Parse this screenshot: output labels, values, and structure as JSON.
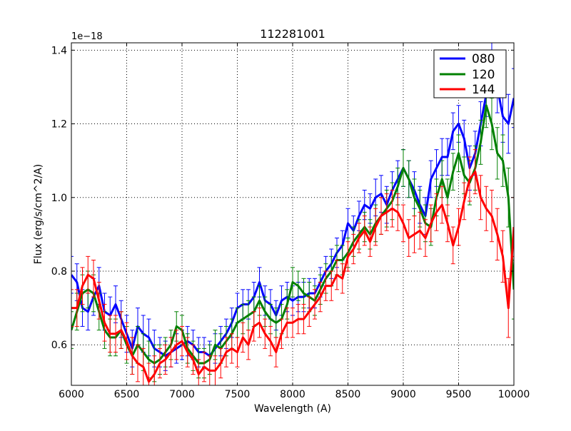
{
  "chart_data": {
    "type": "line",
    "title": "112281001",
    "xlabel": "Wavelength (A)",
    "ylabel": "Flux (erg/s/cm^2/A)",
    "offset_text": "1e−18",
    "xlim": [
      6000,
      10000
    ],
    "ylim": [
      0.49,
      1.42
    ],
    "x_ticks": [
      6000,
      6500,
      7000,
      7500,
      8000,
      8500,
      9000,
      9500,
      10000
    ],
    "x_tick_labels": [
      "6000",
      "6500",
      "7000",
      "7500",
      "8000",
      "8500",
      "9000",
      "9500",
      "10000"
    ],
    "y_ticks": [
      0.6,
      0.8,
      1.0,
      1.2,
      1.4
    ],
    "y_tick_labels": [
      "0.6",
      "0.8",
      "1.0",
      "1.2",
      "1.4"
    ],
    "grid": true,
    "grid_style": "dotted",
    "legend_position": "top-right",
    "error_bars": true,
    "series": [
      {
        "name": "080",
        "color": "#0000ff",
        "x": [
          6000,
          6050,
          6100,
          6150,
          6200,
          6250,
          6300,
          6350,
          6400,
          6450,
          6500,
          6550,
          6600,
          6650,
          6700,
          6750,
          6800,
          6850,
          6900,
          6950,
          7000,
          7050,
          7100,
          7150,
          7200,
          7250,
          7300,
          7350,
          7400,
          7450,
          7500,
          7550,
          7600,
          7650,
          7700,
          7750,
          7800,
          7850,
          7900,
          7950,
          8000,
          8050,
          8100,
          8150,
          8200,
          8250,
          8300,
          8350,
          8400,
          8450,
          8500,
          8550,
          8600,
          8650,
          8700,
          8750,
          8800,
          8850,
          8900,
          8950,
          9000,
          9050,
          9100,
          9150,
          9200,
          9250,
          9300,
          9350,
          9400,
          9450,
          9500,
          9550,
          9600,
          9650,
          9700,
          9750,
          9800,
          9850,
          9900,
          9950,
          10000
        ],
        "y": [
          0.79,
          0.77,
          0.7,
          0.69,
          0.73,
          0.76,
          0.69,
          0.68,
          0.71,
          0.67,
          0.63,
          0.59,
          0.65,
          0.63,
          0.62,
          0.59,
          0.58,
          0.57,
          0.58,
          0.59,
          0.6,
          0.61,
          0.6,
          0.58,
          0.58,
          0.57,
          0.59,
          0.61,
          0.63,
          0.66,
          0.7,
          0.71,
          0.71,
          0.73,
          0.77,
          0.72,
          0.71,
          0.68,
          0.72,
          0.73,
          0.72,
          0.73,
          0.73,
          0.74,
          0.74,
          0.77,
          0.8,
          0.82,
          0.85,
          0.87,
          0.93,
          0.91,
          0.95,
          0.98,
          0.97,
          1.0,
          1.01,
          0.98,
          1.02,
          1.05,
          1.08,
          1.05,
          1.02,
          0.98,
          0.95,
          1.05,
          1.08,
          1.11,
          1.11,
          1.18,
          1.2,
          1.16,
          1.08,
          1.12,
          1.2,
          1.28,
          1.38,
          1.3,
          1.22,
          1.2,
          1.27
        ],
        "err": [
          0.05,
          0.05,
          0.05,
          0.05,
          0.05,
          0.05,
          0.05,
          0.05,
          0.05,
          0.05,
          0.05,
          0.05,
          0.05,
          0.05,
          0.05,
          0.05,
          0.04,
          0.04,
          0.04,
          0.04,
          0.04,
          0.04,
          0.04,
          0.04,
          0.04,
          0.04,
          0.04,
          0.04,
          0.04,
          0.04,
          0.04,
          0.04,
          0.04,
          0.04,
          0.04,
          0.04,
          0.04,
          0.04,
          0.04,
          0.04,
          0.04,
          0.04,
          0.04,
          0.04,
          0.04,
          0.04,
          0.04,
          0.04,
          0.04,
          0.04,
          0.04,
          0.04,
          0.04,
          0.04,
          0.04,
          0.05,
          0.05,
          0.05,
          0.05,
          0.05,
          0.05,
          0.05,
          0.05,
          0.05,
          0.05,
          0.05,
          0.05,
          0.05,
          0.05,
          0.05,
          0.05,
          0.05,
          0.06,
          0.06,
          0.06,
          0.06,
          0.07,
          0.07,
          0.07,
          0.08,
          0.08
        ]
      },
      {
        "name": "120",
        "color": "#008000",
        "x": [
          6000,
          6050,
          6100,
          6150,
          6200,
          6250,
          6300,
          6350,
          6400,
          6450,
          6500,
          6550,
          6600,
          6650,
          6700,
          6750,
          6800,
          6850,
          6900,
          6950,
          7000,
          7050,
          7100,
          7150,
          7200,
          7250,
          7300,
          7350,
          7400,
          7450,
          7500,
          7550,
          7600,
          7650,
          7700,
          7750,
          7800,
          7850,
          7900,
          7950,
          8000,
          8050,
          8100,
          8150,
          8200,
          8250,
          8300,
          8350,
          8400,
          8450,
          8500,
          8550,
          8600,
          8650,
          8700,
          8750,
          8800,
          8850,
          8900,
          8950,
          9000,
          9050,
          9100,
          9150,
          9200,
          9250,
          9300,
          9350,
          9400,
          9450,
          9500,
          9550,
          9600,
          9650,
          9700,
          9750,
          9800,
          9850,
          9900,
          9950,
          10000
        ],
        "y": [
          0.64,
          0.69,
          0.74,
          0.75,
          0.74,
          0.69,
          0.64,
          0.62,
          0.62,
          0.64,
          0.6,
          0.57,
          0.6,
          0.58,
          0.56,
          0.55,
          0.56,
          0.58,
          0.6,
          0.65,
          0.64,
          0.59,
          0.57,
          0.55,
          0.55,
          0.56,
          0.6,
          0.59,
          0.61,
          0.63,
          0.66,
          0.67,
          0.68,
          0.69,
          0.72,
          0.69,
          0.67,
          0.66,
          0.67,
          0.71,
          0.77,
          0.76,
          0.74,
          0.73,
          0.72,
          0.75,
          0.78,
          0.8,
          0.83,
          0.83,
          0.85,
          0.88,
          0.9,
          0.92,
          0.9,
          0.93,
          0.95,
          0.97,
          0.99,
          1.03,
          1.08,
          1.05,
          1.0,
          0.97,
          0.93,
          0.92,
          1.0,
          1.05,
          1.0,
          1.07,
          1.12,
          1.06,
          1.04,
          1.08,
          1.15,
          1.25,
          1.2,
          1.12,
          1.1,
          1.0,
          0.75
        ],
        "err": [
          0.05,
          0.05,
          0.05,
          0.05,
          0.05,
          0.05,
          0.05,
          0.05,
          0.05,
          0.05,
          0.05,
          0.05,
          0.05,
          0.05,
          0.05,
          0.05,
          0.04,
          0.04,
          0.04,
          0.04,
          0.04,
          0.04,
          0.04,
          0.04,
          0.04,
          0.04,
          0.04,
          0.04,
          0.04,
          0.04,
          0.04,
          0.04,
          0.04,
          0.04,
          0.04,
          0.04,
          0.04,
          0.04,
          0.04,
          0.04,
          0.04,
          0.04,
          0.04,
          0.04,
          0.04,
          0.04,
          0.04,
          0.04,
          0.04,
          0.04,
          0.04,
          0.04,
          0.04,
          0.04,
          0.04,
          0.05,
          0.05,
          0.05,
          0.05,
          0.05,
          0.05,
          0.05,
          0.05,
          0.05,
          0.05,
          0.05,
          0.05,
          0.05,
          0.05,
          0.05,
          0.05,
          0.05,
          0.06,
          0.06,
          0.06,
          0.06,
          0.07,
          0.07,
          0.07,
          0.08,
          0.08
        ]
      },
      {
        "name": "144",
        "color": "#ff0000",
        "x": [
          6000,
          6050,
          6100,
          6150,
          6200,
          6250,
          6300,
          6350,
          6400,
          6450,
          6500,
          6550,
          6600,
          6650,
          6700,
          6750,
          6800,
          6850,
          6900,
          6950,
          7000,
          7050,
          7100,
          7150,
          7200,
          7250,
          7300,
          7350,
          7400,
          7450,
          7500,
          7550,
          7600,
          7650,
          7700,
          7750,
          7800,
          7850,
          7900,
          7950,
          8000,
          8050,
          8100,
          8150,
          8200,
          8250,
          8300,
          8350,
          8400,
          8450,
          8500,
          8550,
          8600,
          8650,
          8700,
          8750,
          8800,
          8850,
          8900,
          8950,
          9000,
          9050,
          9100,
          9150,
          9200,
          9250,
          9300,
          9350,
          9400,
          9450,
          9500,
          9550,
          9600,
          9650,
          9700,
          9750,
          9800,
          9850,
          9900,
          9950,
          10000
        ],
        "y": [
          0.7,
          0.7,
          0.76,
          0.79,
          0.78,
          0.72,
          0.66,
          0.63,
          0.63,
          0.64,
          0.61,
          0.57,
          0.55,
          0.54,
          0.5,
          0.52,
          0.55,
          0.56,
          0.58,
          0.6,
          0.61,
          0.58,
          0.56,
          0.52,
          0.54,
          0.53,
          0.53,
          0.55,
          0.58,
          0.59,
          0.58,
          0.62,
          0.6,
          0.65,
          0.66,
          0.63,
          0.61,
          0.58,
          0.63,
          0.66,
          0.66,
          0.67,
          0.67,
          0.69,
          0.71,
          0.73,
          0.76,
          0.76,
          0.79,
          0.78,
          0.84,
          0.86,
          0.89,
          0.91,
          0.88,
          0.92,
          0.95,
          0.96,
          0.97,
          0.96,
          0.93,
          0.89,
          0.9,
          0.91,
          0.89,
          0.93,
          0.96,
          0.98,
          0.93,
          0.87,
          0.92,
          0.99,
          1.05,
          1.07,
          1.0,
          0.97,
          0.95,
          0.9,
          0.84,
          0.7,
          0.92
        ],
        "err": [
          0.05,
          0.05,
          0.05,
          0.05,
          0.05,
          0.05,
          0.05,
          0.05,
          0.05,
          0.05,
          0.05,
          0.05,
          0.05,
          0.05,
          0.05,
          0.05,
          0.04,
          0.04,
          0.04,
          0.04,
          0.04,
          0.04,
          0.04,
          0.04,
          0.04,
          0.04,
          0.04,
          0.04,
          0.04,
          0.04,
          0.04,
          0.04,
          0.04,
          0.04,
          0.04,
          0.04,
          0.04,
          0.04,
          0.04,
          0.04,
          0.04,
          0.04,
          0.04,
          0.04,
          0.04,
          0.04,
          0.04,
          0.04,
          0.04,
          0.04,
          0.04,
          0.04,
          0.04,
          0.04,
          0.04,
          0.05,
          0.05,
          0.05,
          0.05,
          0.05,
          0.05,
          0.05,
          0.05,
          0.05,
          0.05,
          0.05,
          0.05,
          0.05,
          0.05,
          0.05,
          0.05,
          0.05,
          0.06,
          0.06,
          0.06,
          0.06,
          0.07,
          0.07,
          0.07,
          0.08,
          0.08
        ]
      }
    ]
  }
}
